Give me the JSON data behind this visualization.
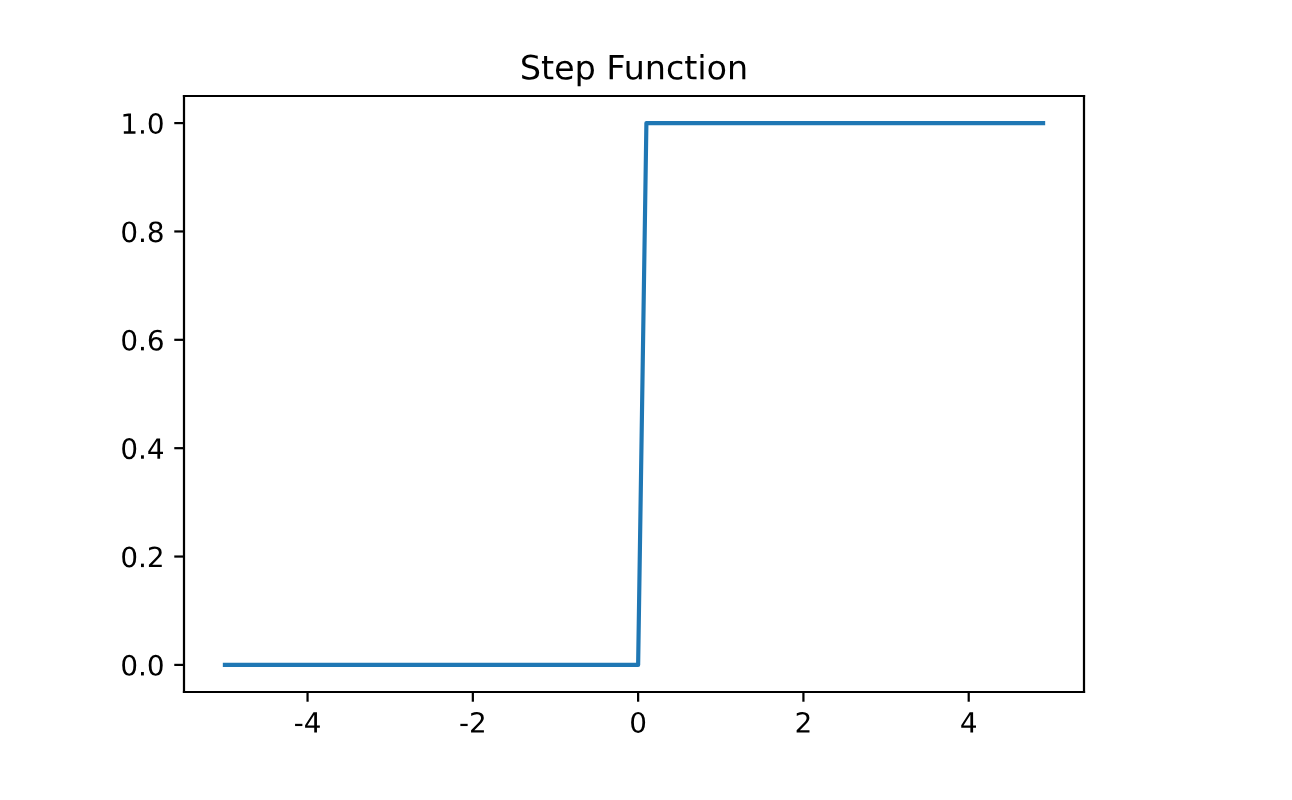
{
  "chart_data": {
    "type": "line",
    "title": "Step Function",
    "x": [
      -5,
      0,
      0.1,
      4.9
    ],
    "series": [
      {
        "color": "#1f77b4",
        "values": [
          0,
          0,
          1,
          1
        ]
      }
    ],
    "xlim": [
      -5.495,
      5.395
    ],
    "ylim": [
      -0.05,
      1.05
    ],
    "xticks": [
      -4,
      -2,
      0,
      2,
      4
    ],
    "yticks": [
      {
        "value": 0,
        "label": "0.0"
      },
      {
        "value": 0.2,
        "label": "0.2"
      },
      {
        "value": 0.4,
        "label": "0.4"
      },
      {
        "value": 0.6,
        "label": "0.6"
      },
      {
        "value": 0.8,
        "label": "0.8"
      },
      {
        "value": 1.0,
        "label": "1.0"
      }
    ],
    "grid": false,
    "marker": "none",
    "line_style": "solid"
  }
}
